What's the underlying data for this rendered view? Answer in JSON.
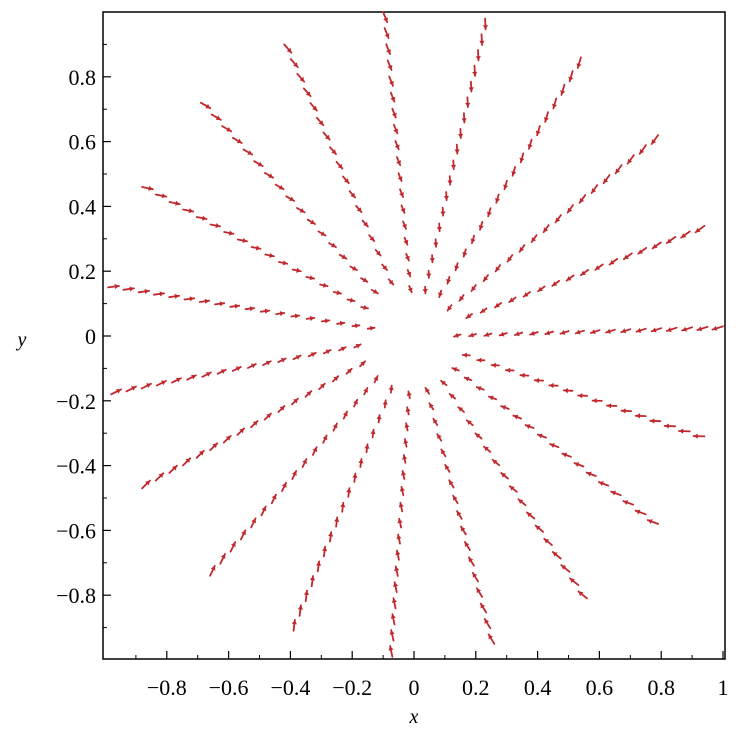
{
  "chart_data": {
    "type": "vector-field",
    "title": "",
    "xlabel": "x",
    "ylabel": "y",
    "xlim": [
      -1,
      1
    ],
    "ylim": [
      -1,
      1
    ],
    "grid": false,
    "legend": "none",
    "arrow_color": "#c0282d",
    "x_ticks": [
      {
        "value": -0.8,
        "label": "−0.8"
      },
      {
        "value": -0.6,
        "label": "−0.6"
      },
      {
        "value": -0.4,
        "label": "−0.4"
      },
      {
        "value": -0.2,
        "label": "−0.2"
      },
      {
        "value": 0,
        "label": "0"
      },
      {
        "value": 0.2,
        "label": "0.2"
      },
      {
        "value": 0.4,
        "label": "0.4"
      },
      {
        "value": 0.6,
        "label": "0.6"
      },
      {
        "value": 0.8,
        "label": "0.8"
      },
      {
        "value": 1,
        "label": "1"
      }
    ],
    "y_ticks": [
      {
        "value": 0.8,
        "label": "0.8"
      },
      {
        "value": 0.6,
        "label": "0.6"
      },
      {
        "value": 0.4,
        "label": "0.4"
      },
      {
        "value": 0.2,
        "label": "0.2"
      },
      {
        "value": 0,
        "label": "0"
      },
      {
        "value": -0.2,
        "label": "−0.2"
      },
      {
        "value": -0.4,
        "label": "−0.4"
      },
      {
        "value": -0.6,
        "label": "−0.6"
      },
      {
        "value": -0.8,
        "label": "−0.8"
      }
    ],
    "spokes": [
      {
        "x": 0.94,
        "y": 0.34
      },
      {
        "x": 0.79,
        "y": 0.62
      },
      {
        "x": 0.54,
        "y": 0.86
      },
      {
        "x": 0.23,
        "y": 0.98
      },
      {
        "x": -0.1,
        "y": 1.0
      },
      {
        "x": -0.42,
        "y": 0.9
      },
      {
        "x": -0.69,
        "y": 0.72
      },
      {
        "x": -0.88,
        "y": 0.46
      },
      {
        "x": -0.99,
        "y": 0.15
      },
      {
        "x": -0.98,
        "y": -0.18
      },
      {
        "x": -0.88,
        "y": -0.47
      },
      {
        "x": -0.66,
        "y": -0.74
      },
      {
        "x": -0.39,
        "y": -0.91
      },
      {
        "x": -0.07,
        "y": -0.99
      },
      {
        "x": 0.26,
        "y": -0.95
      },
      {
        "x": 0.56,
        "y": -0.81
      },
      {
        "x": 0.79,
        "y": -0.58
      },
      {
        "x": 0.94,
        "y": -0.31
      },
      {
        "x": 1.0,
        "y": 0.03
      }
    ]
  }
}
